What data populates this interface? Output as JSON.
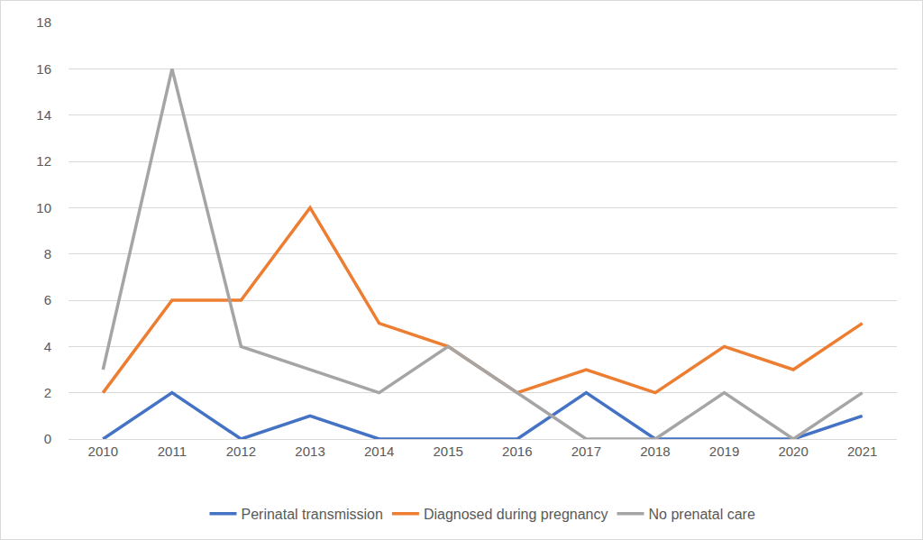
{
  "chart_data": {
    "type": "line",
    "categories": [
      "2010",
      "2011",
      "2012",
      "2013",
      "2014",
      "2015",
      "2016",
      "2017",
      "2018",
      "2019",
      "2020",
      "2021"
    ],
    "series": [
      {
        "name": "Perinatal transmission",
        "color": "#4472c4",
        "values": [
          0,
          2,
          0,
          1,
          0,
          0,
          0,
          2,
          0,
          0,
          0,
          1
        ]
      },
      {
        "name": "Diagnosed during pregnancy",
        "color": "#ed7d31",
        "values": [
          2,
          6,
          6,
          10,
          5,
          4,
          2,
          3,
          2,
          4,
          3,
          5
        ]
      },
      {
        "name": "No prenatal care",
        "color": "#a5a5a5",
        "values": [
          3,
          16,
          4,
          3,
          2,
          4,
          2,
          0,
          0,
          2,
          0,
          2
        ]
      }
    ],
    "ylim": [
      0,
      18
    ],
    "yticks": [
      0,
      2,
      4,
      6,
      8,
      10,
      12,
      14,
      16,
      18
    ],
    "grid": true,
    "legend": "bottom"
  }
}
